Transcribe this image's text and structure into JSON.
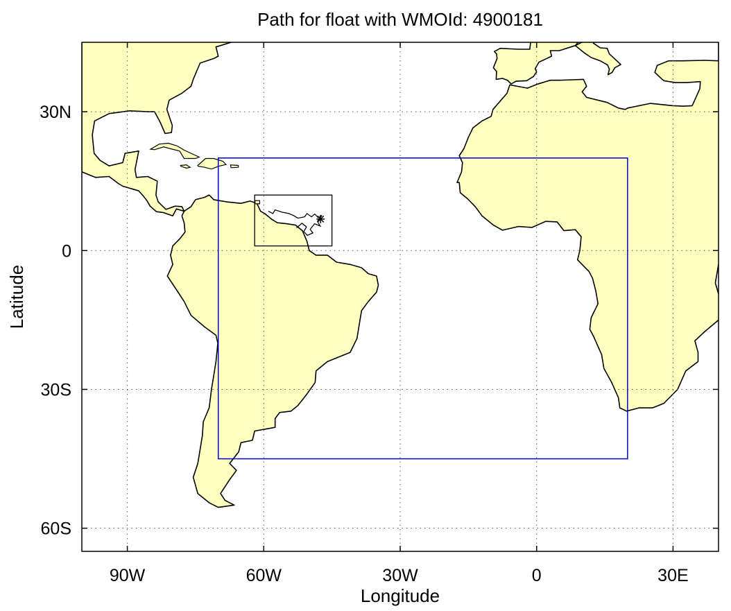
{
  "title": "Path for float with WMOId: 4900181",
  "xlabel": "Longitude",
  "ylabel": "Latitude",
  "map": {
    "lon_range": [
      -100,
      40
    ],
    "lat_range": [
      -65,
      45
    ],
    "land_color": "#ffffc0",
    "ocean_color": "#ffffff",
    "grid": "dotted",
    "lon_ticks": [
      {
        "value": -90,
        "label": "90W"
      },
      {
        "value": -60,
        "label": "60W"
      },
      {
        "value": -30,
        "label": "30W"
      },
      {
        "value": 0,
        "label": "0"
      },
      {
        "value": 30,
        "label": "30E"
      }
    ],
    "lat_ticks": [
      {
        "value": 30,
        "label": "30N"
      },
      {
        "value": 0,
        "label": "0"
      },
      {
        "value": -30,
        "label": "30S"
      },
      {
        "value": -60,
        "label": "60S"
      }
    ],
    "region_box": {
      "color": "#0000cc",
      "lon": [
        -70,
        20
      ],
      "lat": [
        -45,
        20
      ]
    },
    "float_box": {
      "color": "#000000",
      "lon": [
        -62,
        -45
      ],
      "lat": [
        1,
        12
      ]
    },
    "float_path": {
      "color": "#000000",
      "points": [
        [
          -59,
          8.5
        ],
        [
          -58,
          8
        ],
        [
          -57.5,
          8.8
        ],
        [
          -56,
          8.3
        ],
        [
          -54.5,
          8
        ],
        [
          -53.5,
          7.6
        ],
        [
          -52.5,
          7
        ],
        [
          -51,
          7.3
        ],
        [
          -50.5,
          8
        ],
        [
          -49.5,
          7.3
        ],
        [
          -48.8,
          7.9
        ],
        [
          -48,
          7.1
        ],
        [
          -47.2,
          7.6
        ],
        [
          -48.2,
          6.3
        ],
        [
          -47.6,
          5.3
        ],
        [
          -48.8,
          5.8
        ],
        [
          -49.8,
          4.6
        ],
        [
          -49.2,
          3.8
        ],
        [
          -50.4,
          3.3
        ],
        [
          -51.2,
          4.1
        ],
        [
          -50.6,
          5.1
        ],
        [
          -51.6,
          5.9
        ],
        [
          -52.8,
          4.9
        ]
      ],
      "end_marker": [
        -47.5,
        6.8
      ]
    }
  }
}
